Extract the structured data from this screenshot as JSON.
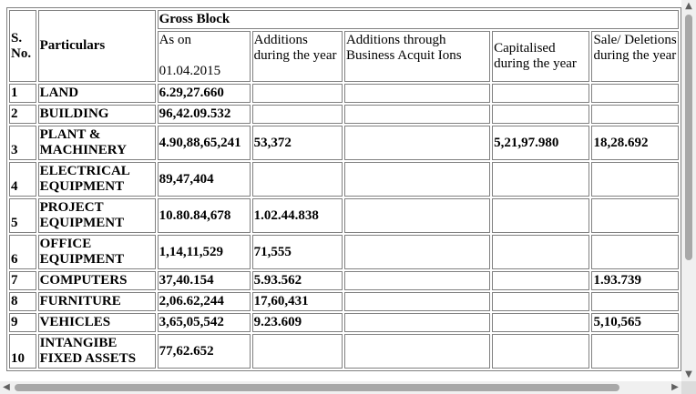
{
  "table": {
    "header": {
      "sno": "S. No.",
      "particulars": "Particulars",
      "gross_block": "Gross Block",
      "col_as_on_label": "As on",
      "col_as_on_date": "01.04.2015",
      "col_additions": "Additions during the year",
      "col_additions_business": "Additions through Business Acquit Ions",
      "col_capitalised": "Capitalised during the year",
      "col_sale": "Sale/ Deletions during the year"
    },
    "rows": [
      {
        "sno": "1",
        "particular": "LAND",
        "as_on": "6.29,27.660",
        "additions": "",
        "business": "",
        "capitalised": "",
        "sale": ""
      },
      {
        "sno": "2",
        "particular": "BUILDING",
        "as_on": "96,42.09.532",
        "additions": "",
        "business": "",
        "capitalised": "",
        "sale": ""
      },
      {
        "sno": "3",
        "particular": "PLANT & MACHINERY",
        "as_on": "4.90,88,65,241",
        "additions": "53,372",
        "business": "",
        "capitalised": "5,21,97.980",
        "sale": "18,28.692"
      },
      {
        "sno": "4",
        "particular": "ELECTRICAL EQUIPMENT",
        "as_on": "89,47,404",
        "additions": "",
        "business": "",
        "capitalised": "",
        "sale": ""
      },
      {
        "sno": "5",
        "particular": "PROJECT EQUIPMENT",
        "as_on": "10.80.84,678",
        "additions": "1.02.44.838",
        "business": "",
        "capitalised": "",
        "sale": ""
      },
      {
        "sno": "6",
        "particular": "OFFICE EQUIPMENT",
        "as_on": "1,14,11,529",
        "additions": "71,555",
        "business": "",
        "capitalised": "",
        "sale": ""
      },
      {
        "sno": "7",
        "particular": "COMPUTERS",
        "as_on": "37,40.154",
        "additions": "5.93.562",
        "business": "",
        "capitalised": "",
        "sale": "1.93.739"
      },
      {
        "sno": "8",
        "particular": "FURNITURE",
        "as_on": "2,06.62,244",
        "additions": "17,60,431",
        "business": "",
        "capitalised": "",
        "sale": ""
      },
      {
        "sno": "9",
        "particular": "VEHICLES",
        "as_on": "3,65,05,542",
        "additions": "9.23.609",
        "business": "",
        "capitalised": "",
        "sale": "5,10,565"
      },
      {
        "sno": "10",
        "particular": "INTANGIBE FIXED ASSETS",
        "as_on": "77,62.652",
        "additions": "",
        "business": "",
        "capitalised": "",
        "sale": ""
      }
    ]
  }
}
